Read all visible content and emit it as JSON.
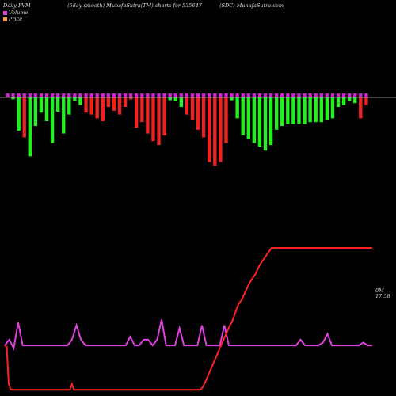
{
  "header": {
    "left": "Daily PVM",
    "middle": "(5day smooth) MunafaSutra(TM) charts for 535647",
    "right": "(SDC) MunafaSutra.com"
  },
  "legend": {
    "volume_label": "Volume",
    "volume_color": "#e040e0",
    "price_label": "Price",
    "price_color": "#f0a040"
  },
  "labels": {
    "volume_tag": "0M",
    "price_tag": "17.58"
  },
  "chart_data": {
    "type": "bar",
    "title": "",
    "series": [
      {
        "name": "Volume",
        "kind": "bar",
        "up_color": "#22ee22",
        "down_color": "#ee2222",
        "tick_color": "#cc22cc",
        "values": [
          4,
          -2,
          -35,
          -42,
          -62,
          -30,
          -16,
          -25,
          -48,
          -15,
          -38,
          -18,
          -4,
          -8,
          -16,
          -18,
          -22,
          -25,
          -10,
          -14,
          -18,
          -10,
          -2,
          -32,
          -26,
          -38,
          -46,
          -50,
          -40,
          -3,
          -4,
          -10,
          -18,
          -24,
          -34,
          -42,
          -68,
          -72,
          -68,
          -48,
          -3,
          -22,
          -40,
          -44,
          -48,
          -52,
          -56,
          -50,
          -34,
          -30,
          -28,
          -28,
          -28,
          -28,
          -26,
          -26,
          -26,
          -24,
          -22,
          -10,
          -8,
          -4,
          -6,
          -22,
          -8
        ],
        "direction": [
          "up",
          "up",
          "up",
          "down",
          "up",
          "up",
          "up",
          "up",
          "up",
          "up",
          "up",
          "up",
          "up",
          "up",
          "down",
          "down",
          "down",
          "down",
          "down",
          "down",
          "down",
          "down",
          "down",
          "down",
          "down",
          "down",
          "down",
          "down",
          "down",
          "up",
          "up",
          "up",
          "down",
          "down",
          "down",
          "down",
          "down",
          "down",
          "down",
          "down",
          "up",
          "up",
          "up",
          "up",
          "up",
          "up",
          "up",
          "up",
          "up",
          "up",
          "up",
          "up",
          "up",
          "up",
          "up",
          "up",
          "up",
          "up",
          "up",
          "up",
          "up",
          "up",
          "up",
          "down",
          "down"
        ]
      },
      {
        "name": "",
        "kind": "line",
        "color": "#e040e0",
        "values": [
          16,
          18,
          15,
          24,
          16,
          16,
          16,
          16,
          16,
          16,
          16,
          16,
          16,
          16,
          16,
          18,
          23,
          18,
          16,
          16,
          16,
          16,
          16,
          16,
          16,
          16,
          16,
          16,
          19,
          16,
          16,
          18,
          18,
          16,
          18,
          25,
          16,
          16,
          16,
          22,
          16,
          16,
          16,
          16,
          23,
          16,
          16,
          16,
          16,
          23,
          16,
          16,
          16,
          16,
          16,
          16,
          16,
          16,
          16,
          16,
          16,
          16,
          16,
          16,
          16,
          16,
          18,
          16,
          16,
          16,
          16,
          17,
          20,
          16,
          16,
          16,
          16,
          16,
          16,
          16,
          17,
          16,
          16
        ]
      },
      {
        "name": "",
        "kind": "line",
        "color": "#ff2222",
        "values": [
          16,
          15.6,
          2.5,
          0.6,
          0.5,
          0.5,
          0.5,
          0.5,
          0.5,
          0.5,
          0.5,
          0.5,
          0.5,
          0.5,
          0.5,
          0.5,
          0.5,
          0.5,
          0.5,
          0.5,
          0.5,
          0.5,
          0.5,
          0.5,
          0.5,
          0.5,
          0.5,
          0.5,
          0.5,
          0.5,
          0.5,
          0.5,
          0.5,
          0.5,
          2.5,
          0.5,
          0.5,
          0.5,
          0.5,
          0.5,
          0.5,
          0.5,
          0.5,
          0.5,
          0.5,
          0.5,
          0.5,
          0.5,
          0.5,
          0.5,
          0.5,
          0.5,
          0.5,
          0.5,
          0.5,
          0.5,
          0.5,
          0.5,
          0.5,
          0.5,
          0.5,
          0.5,
          0.5,
          0.5,
          0.5,
          0.5,
          0.5,
          0.5,
          0.5,
          0.5,
          0.5,
          0.5,
          0.5,
          0.5,
          0.5,
          0.5,
          0.5,
          0.5,
          0.5,
          0.5,
          0.5,
          0.5,
          0.5,
          0.5,
          0.5,
          0.5,
          0.5,
          0.5,
          0.5,
          0.5,
          0.5,
          0.5,
          0.5,
          0.5,
          0.5,
          0.5,
          0.5,
          0.5,
          0.5,
          0.5,
          1.2,
          2.5,
          4.0,
          5.6,
          7.2,
          8.8,
          10.4,
          12.0,
          13.6,
          15.2,
          16.8,
          18.4,
          20.0,
          21.5,
          23.0,
          24.2,
          26.0,
          28.0,
          30.0,
          31.0,
          32.0,
          33.5,
          35.0,
          36.5,
          38.0,
          39.0,
          40.0,
          41.0,
          42.5,
          44.0,
          45.0,
          46.0,
          47.0,
          48.0,
          49.0,
          50.0,
          50.0,
          50.0,
          50.0,
          50.0,
          50.0,
          50.0,
          50.0,
          50.0,
          50.0,
          50.0,
          50.0,
          50.0,
          50.0,
          50.0,
          50.0,
          50.0,
          50.0,
          50.0,
          50.0,
          50.0,
          50.0,
          50.0,
          50.0,
          50.0,
          50.0,
          50.0,
          50.0,
          50.0,
          50.0,
          50.0,
          50.0,
          50.0,
          50.0,
          50.0,
          50.0,
          50.0,
          50.0,
          50.0,
          50.0,
          50.0,
          50.0,
          50.0,
          50.0,
          50.0,
          50.0,
          50.0,
          50.0,
          50.0,
          50.0,
          50.0,
          50.0
        ]
      }
    ],
    "axes": {
      "grid": false,
      "legend_position": "top-left"
    }
  }
}
